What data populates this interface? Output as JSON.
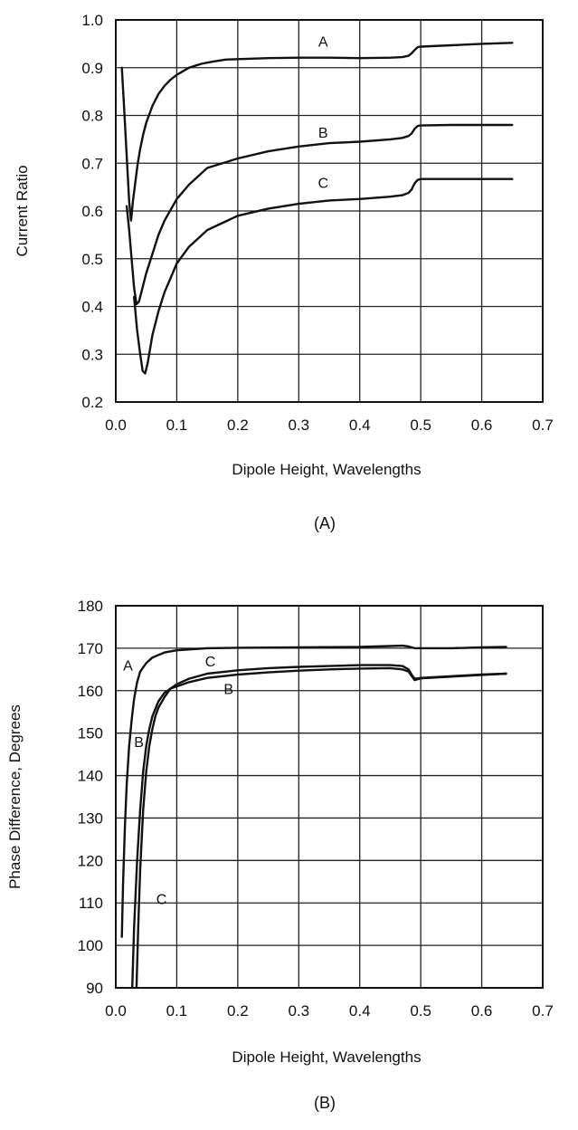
{
  "chart_data": [
    {
      "type": "line",
      "panel_label": "(A)",
      "xlabel": "Dipole Height, Wavelengths",
      "ylabel": "Current Ratio",
      "xlim": [
        0.0,
        0.7
      ],
      "ylim": [
        0.2,
        1.0
      ],
      "xticks": [
        "0.0",
        "0.1",
        "0.2",
        "0.3",
        "0.4",
        "0.5",
        "0.6",
        "0.7"
      ],
      "yticks": [
        "0.2",
        "0.3",
        "0.4",
        "0.5",
        "0.6",
        "0.7",
        "0.8",
        "0.9",
        "1.0"
      ],
      "grid": true,
      "series": [
        {
          "name": "A",
          "x": [
            0.01,
            0.013,
            0.016,
            0.019,
            0.022,
            0.025,
            0.028,
            0.032,
            0.036,
            0.04,
            0.045,
            0.05,
            0.06,
            0.07,
            0.08,
            0.09,
            0.1,
            0.12,
            0.14,
            0.16,
            0.18,
            0.2,
            0.25,
            0.3,
            0.35,
            0.4,
            0.45,
            0.47,
            0.48,
            0.485,
            0.49,
            0.495,
            0.5,
            0.55,
            0.6,
            0.65
          ],
          "y": [
            0.9,
            0.83,
            0.76,
            0.69,
            0.62,
            0.58,
            0.62,
            0.66,
            0.7,
            0.73,
            0.76,
            0.785,
            0.82,
            0.845,
            0.862,
            0.875,
            0.885,
            0.9,
            0.908,
            0.913,
            0.917,
            0.918,
            0.92,
            0.921,
            0.921,
            0.92,
            0.921,
            0.922,
            0.925,
            0.93,
            0.937,
            0.943,
            0.944,
            0.947,
            0.95,
            0.952
          ]
        },
        {
          "name": "B",
          "x": [
            0.018,
            0.022,
            0.026,
            0.03,
            0.034,
            0.038,
            0.042,
            0.05,
            0.06,
            0.07,
            0.08,
            0.1,
            0.12,
            0.15,
            0.2,
            0.25,
            0.3,
            0.35,
            0.4,
            0.45,
            0.47,
            0.48,
            0.485,
            0.49,
            0.495,
            0.5,
            0.55,
            0.6,
            0.65
          ],
          "y": [
            0.61,
            0.56,
            0.5,
            0.44,
            0.405,
            0.41,
            0.43,
            0.47,
            0.51,
            0.55,
            0.58,
            0.625,
            0.655,
            0.69,
            0.71,
            0.725,
            0.735,
            0.742,
            0.745,
            0.75,
            0.753,
            0.757,
            0.762,
            0.772,
            0.778,
            0.779,
            0.78,
            0.78,
            0.78
          ]
        },
        {
          "name": "C",
          "x": [
            0.03,
            0.035,
            0.04,
            0.044,
            0.048,
            0.052,
            0.056,
            0.06,
            0.07,
            0.08,
            0.09,
            0.1,
            0.12,
            0.15,
            0.2,
            0.25,
            0.3,
            0.35,
            0.4,
            0.45,
            0.47,
            0.48,
            0.485,
            0.49,
            0.495,
            0.5,
            0.55,
            0.6,
            0.65
          ],
          "y": [
            0.42,
            0.35,
            0.3,
            0.265,
            0.26,
            0.28,
            0.31,
            0.34,
            0.39,
            0.43,
            0.46,
            0.49,
            0.525,
            0.56,
            0.59,
            0.605,
            0.615,
            0.622,
            0.625,
            0.63,
            0.633,
            0.638,
            0.645,
            0.658,
            0.665,
            0.667,
            0.667,
            0.667,
            0.667
          ]
        }
      ],
      "curve_labels": [
        {
          "text": "A",
          "x": 0.34,
          "y": 0.955
        },
        {
          "text": "B",
          "x": 0.34,
          "y": 0.765
        },
        {
          "text": "C",
          "x": 0.34,
          "y": 0.66
        }
      ]
    },
    {
      "type": "line",
      "panel_label": "(B)",
      "xlabel": "Dipole Height, Wavelengths",
      "ylabel": "Phase Difference, Degrees",
      "xlim": [
        0.0,
        0.7
      ],
      "ylim": [
        90,
        180
      ],
      "xticks": [
        "0.0",
        "0.1",
        "0.2",
        "0.3",
        "0.4",
        "0.5",
        "0.6",
        "0.7"
      ],
      "yticks": [
        "90",
        "100",
        "110",
        "120",
        "130",
        "140",
        "150",
        "160",
        "170",
        "180"
      ],
      "grid": true,
      "series": [
        {
          "name": "A",
          "x": [
            0.01,
            0.012,
            0.015,
            0.018,
            0.022,
            0.026,
            0.03,
            0.035,
            0.04,
            0.05,
            0.06,
            0.08,
            0.1,
            0.15,
            0.2,
            0.3,
            0.4,
            0.45,
            0.47,
            0.48,
            0.49,
            0.5,
            0.55,
            0.6,
            0.64
          ],
          "y": [
            102,
            115,
            128,
            138,
            147,
            153,
            158,
            162,
            164.5,
            166.5,
            167.8,
            169,
            169.5,
            170,
            170.1,
            170.2,
            170.3,
            170.5,
            170.6,
            170.4,
            170,
            170,
            170,
            170.2,
            170.3
          ]
        },
        {
          "name": "B",
          "x": [
            0.027,
            0.03,
            0.035,
            0.04,
            0.045,
            0.05,
            0.055,
            0.06,
            0.07,
            0.08,
            0.09,
            0.1,
            0.12,
            0.15,
            0.2,
            0.25,
            0.3,
            0.35,
            0.4,
            0.45,
            0.47,
            0.48,
            0.485,
            0.49,
            0.495,
            0.5,
            0.55,
            0.6,
            0.64
          ],
          "y": [
            90,
            104,
            120,
            132,
            141,
            147,
            151,
            154,
            157.5,
            159.5,
            160.5,
            161,
            162,
            163,
            163.8,
            164.3,
            164.7,
            165,
            165.2,
            165.3,
            165,
            164.5,
            163.5,
            162.5,
            162.7,
            162.9,
            163.3,
            163.7,
            164
          ]
        },
        {
          "name": "C",
          "x": [
            0.034,
            0.037,
            0.04,
            0.045,
            0.05,
            0.055,
            0.06,
            0.065,
            0.07,
            0.08,
            0.09,
            0.1,
            0.12,
            0.15,
            0.2,
            0.25,
            0.3,
            0.35,
            0.4,
            0.45,
            0.47,
            0.48,
            0.485,
            0.49,
            0.495,
            0.5,
            0.55,
            0.6,
            0.64
          ],
          "y": [
            90,
            105,
            118,
            132,
            141,
            147,
            151,
            154,
            156,
            158.5,
            160.5,
            161.5,
            162.8,
            164,
            164.8,
            165.3,
            165.6,
            165.8,
            166,
            166,
            165.8,
            165,
            163.8,
            162.8,
            162.9,
            163,
            163.4,
            163.8,
            164
          ]
        }
      ],
      "curve_labels": [
        {
          "text": "A",
          "x": 0.02,
          "y": 166
        },
        {
          "text": "B",
          "x": 0.038,
          "y": 148
        },
        {
          "text": "C",
          "x": 0.075,
          "y": 111
        },
        {
          "text": "C",
          "x": 0.155,
          "y": 167
        },
        {
          "text": "B",
          "x": 0.185,
          "y": 160.5
        }
      ]
    }
  ]
}
